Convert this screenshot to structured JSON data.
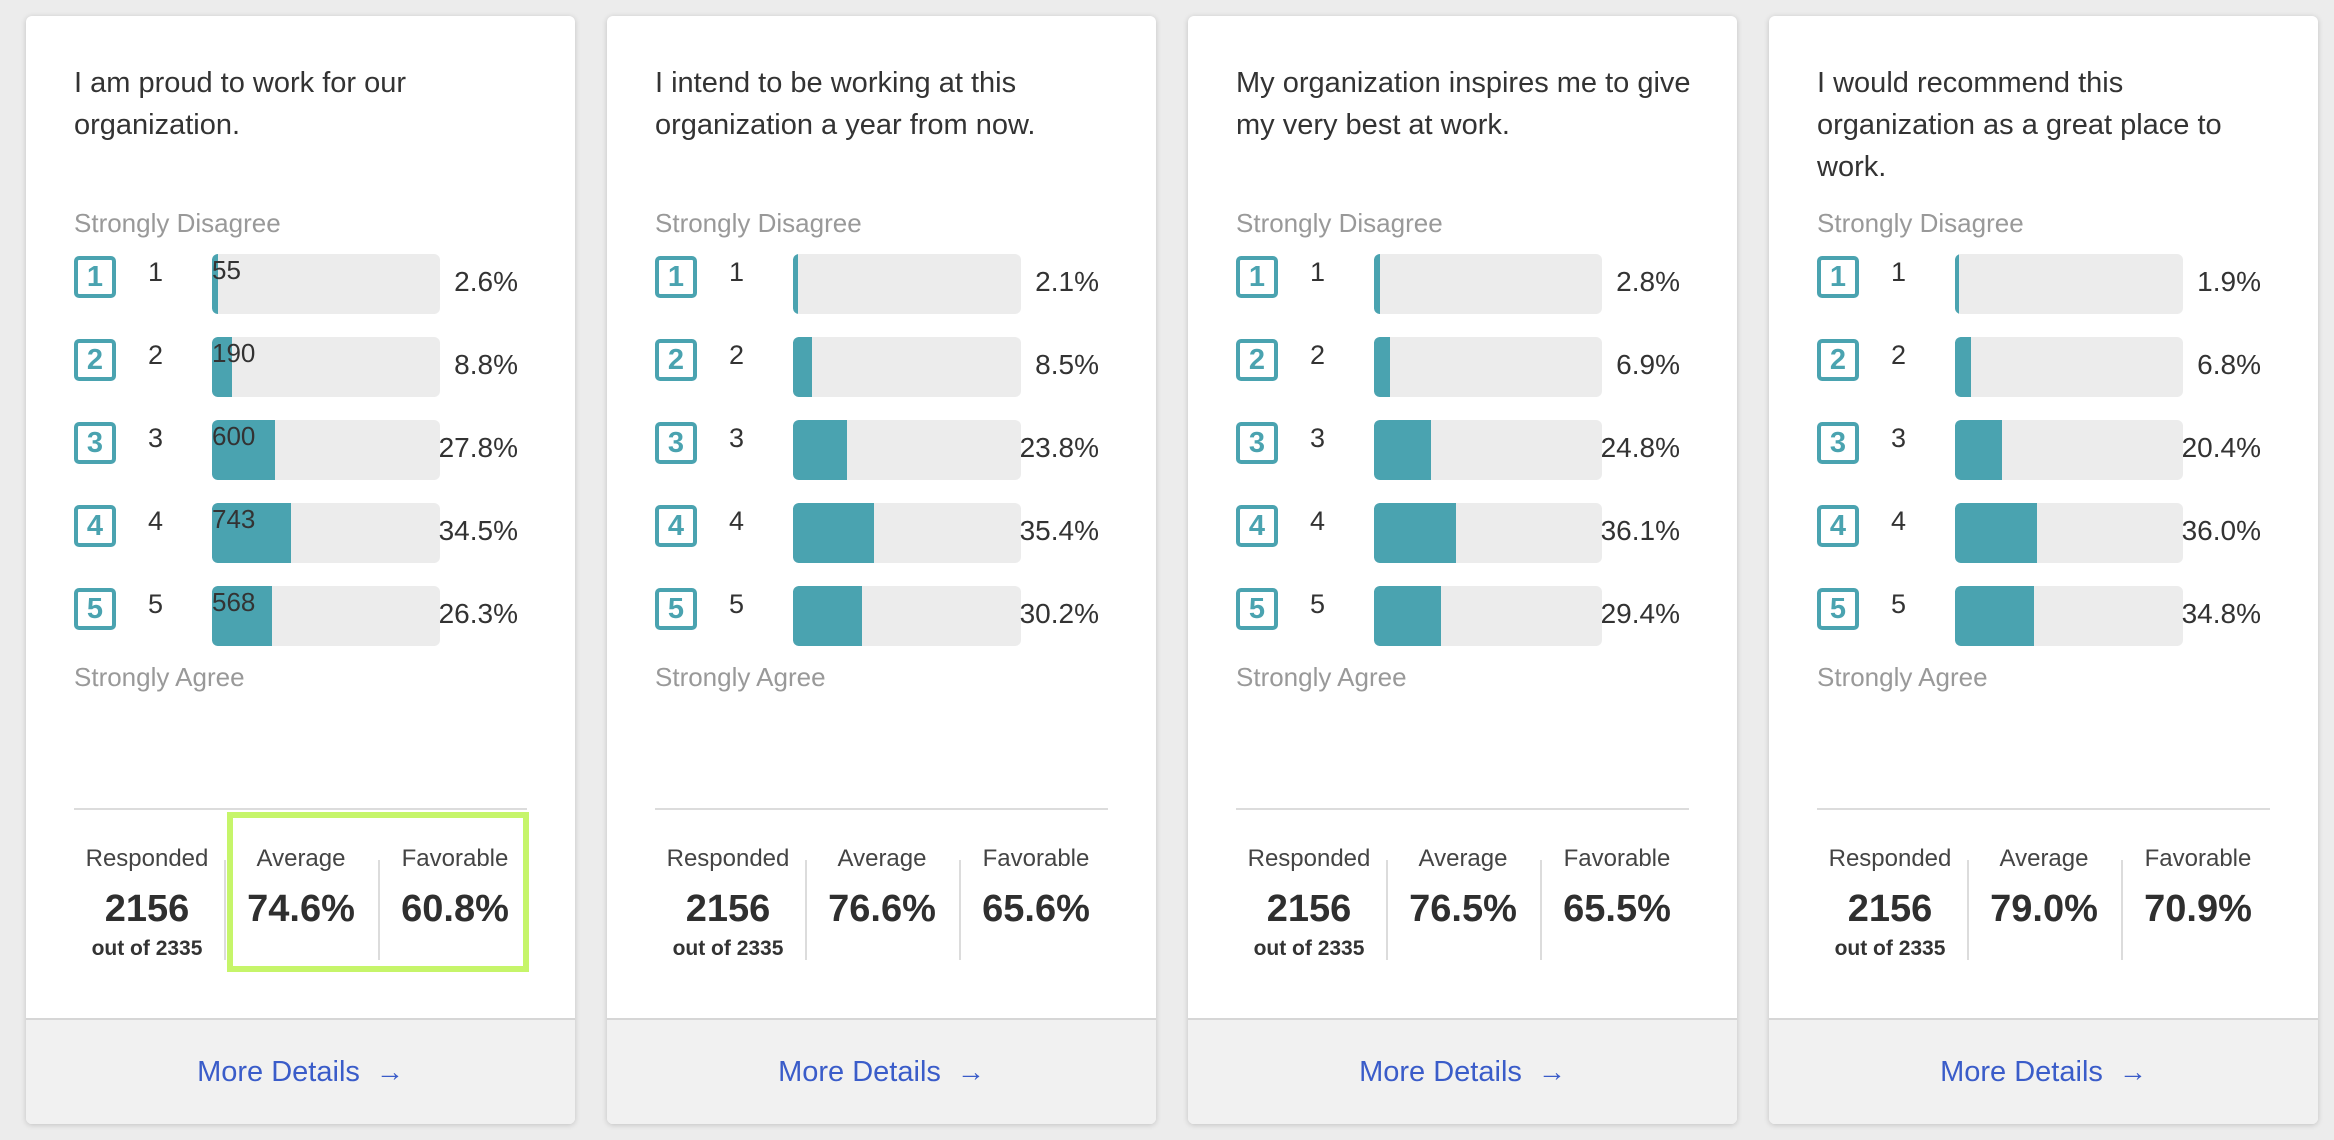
{
  "accent_color": "#4aa3b0",
  "highlight_color": "#c6f56a",
  "scale": {
    "top_label": "Strongly Disagree",
    "bottom_label": "Strongly Agree"
  },
  "labels": {
    "responded": "Responded",
    "average": "Average",
    "favorable": "Favorable",
    "more_details": "More Details",
    "arrow": "→"
  },
  "cards": [
    {
      "question": "I am proud to work for our organization.",
      "rows": [
        {
          "score": "1",
          "count": "55",
          "pct": "2.6%",
          "fraction": 0.026
        },
        {
          "score": "2",
          "count": "190",
          "pct": "8.8%",
          "fraction": 0.088
        },
        {
          "score": "3",
          "count": "600",
          "pct": "27.8%",
          "fraction": 0.278
        },
        {
          "score": "4",
          "count": "743",
          "pct": "34.5%",
          "fraction": 0.345
        },
        {
          "score": "5",
          "count": "568",
          "pct": "26.3%",
          "fraction": 0.263
        }
      ],
      "responded": "2156",
      "out_of": "out of 2335",
      "average": "74.6%",
      "favorable": "60.8%",
      "highlighted": true
    },
    {
      "question": "I intend to be working at this organization a year from now.",
      "rows": [
        {
          "score": "1",
          "count": "",
          "pct": "2.1%",
          "fraction": 0.021
        },
        {
          "score": "2",
          "count": "",
          "pct": "8.5%",
          "fraction": 0.085
        },
        {
          "score": "3",
          "count": "",
          "pct": "23.8%",
          "fraction": 0.238
        },
        {
          "score": "4",
          "count": "",
          "pct": "35.4%",
          "fraction": 0.354
        },
        {
          "score": "5",
          "count": "",
          "pct": "30.2%",
          "fraction": 0.302
        }
      ],
      "responded": "2156",
      "out_of": "out of 2335",
      "average": "76.6%",
      "favorable": "65.6%",
      "highlighted": false
    },
    {
      "question": "My organization inspires me to give my very best at work.",
      "rows": [
        {
          "score": "1",
          "count": "",
          "pct": "2.8%",
          "fraction": 0.028
        },
        {
          "score": "2",
          "count": "",
          "pct": "6.9%",
          "fraction": 0.069
        },
        {
          "score": "3",
          "count": "",
          "pct": "24.8%",
          "fraction": 0.248
        },
        {
          "score": "4",
          "count": "",
          "pct": "36.1%",
          "fraction": 0.361
        },
        {
          "score": "5",
          "count": "",
          "pct": "29.4%",
          "fraction": 0.294
        }
      ],
      "responded": "2156",
      "out_of": "out of 2335",
      "average": "76.5%",
      "favorable": "65.5%",
      "highlighted": false
    },
    {
      "question": "I would recommend this organization as a great place to work.",
      "rows": [
        {
          "score": "1",
          "count": "",
          "pct": "1.9%",
          "fraction": 0.019
        },
        {
          "score": "2",
          "count": "",
          "pct": "6.8%",
          "fraction": 0.068
        },
        {
          "score": "3",
          "count": "",
          "pct": "20.4%",
          "fraction": 0.204
        },
        {
          "score": "4",
          "count": "",
          "pct": "36.0%",
          "fraction": 0.36
        },
        {
          "score": "5",
          "count": "",
          "pct": "34.8%",
          "fraction": 0.348
        }
      ],
      "responded": "2156",
      "out_of": "out of 2335",
      "average": "79.0%",
      "favorable": "70.9%",
      "highlighted": false
    }
  ]
}
